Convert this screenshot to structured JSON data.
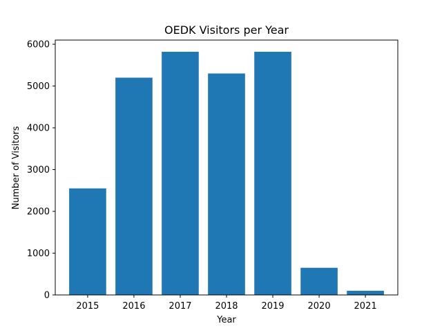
{
  "chart_data": {
    "type": "bar",
    "title": "OEDK Visitors per Year",
    "xlabel": "Year",
    "ylabel": "Number of Visitors",
    "categories": [
      "2015",
      "2016",
      "2017",
      "2018",
      "2019",
      "2020",
      "2021"
    ],
    "values": [
      2550,
      5200,
      5820,
      5300,
      5820,
      650,
      100
    ],
    "ylim": [
      0,
      6100
    ],
    "yticks": [
      0,
      1000,
      2000,
      3000,
      4000,
      5000,
      6000
    ],
    "grid": false,
    "bar_color": "#1f77b4"
  }
}
